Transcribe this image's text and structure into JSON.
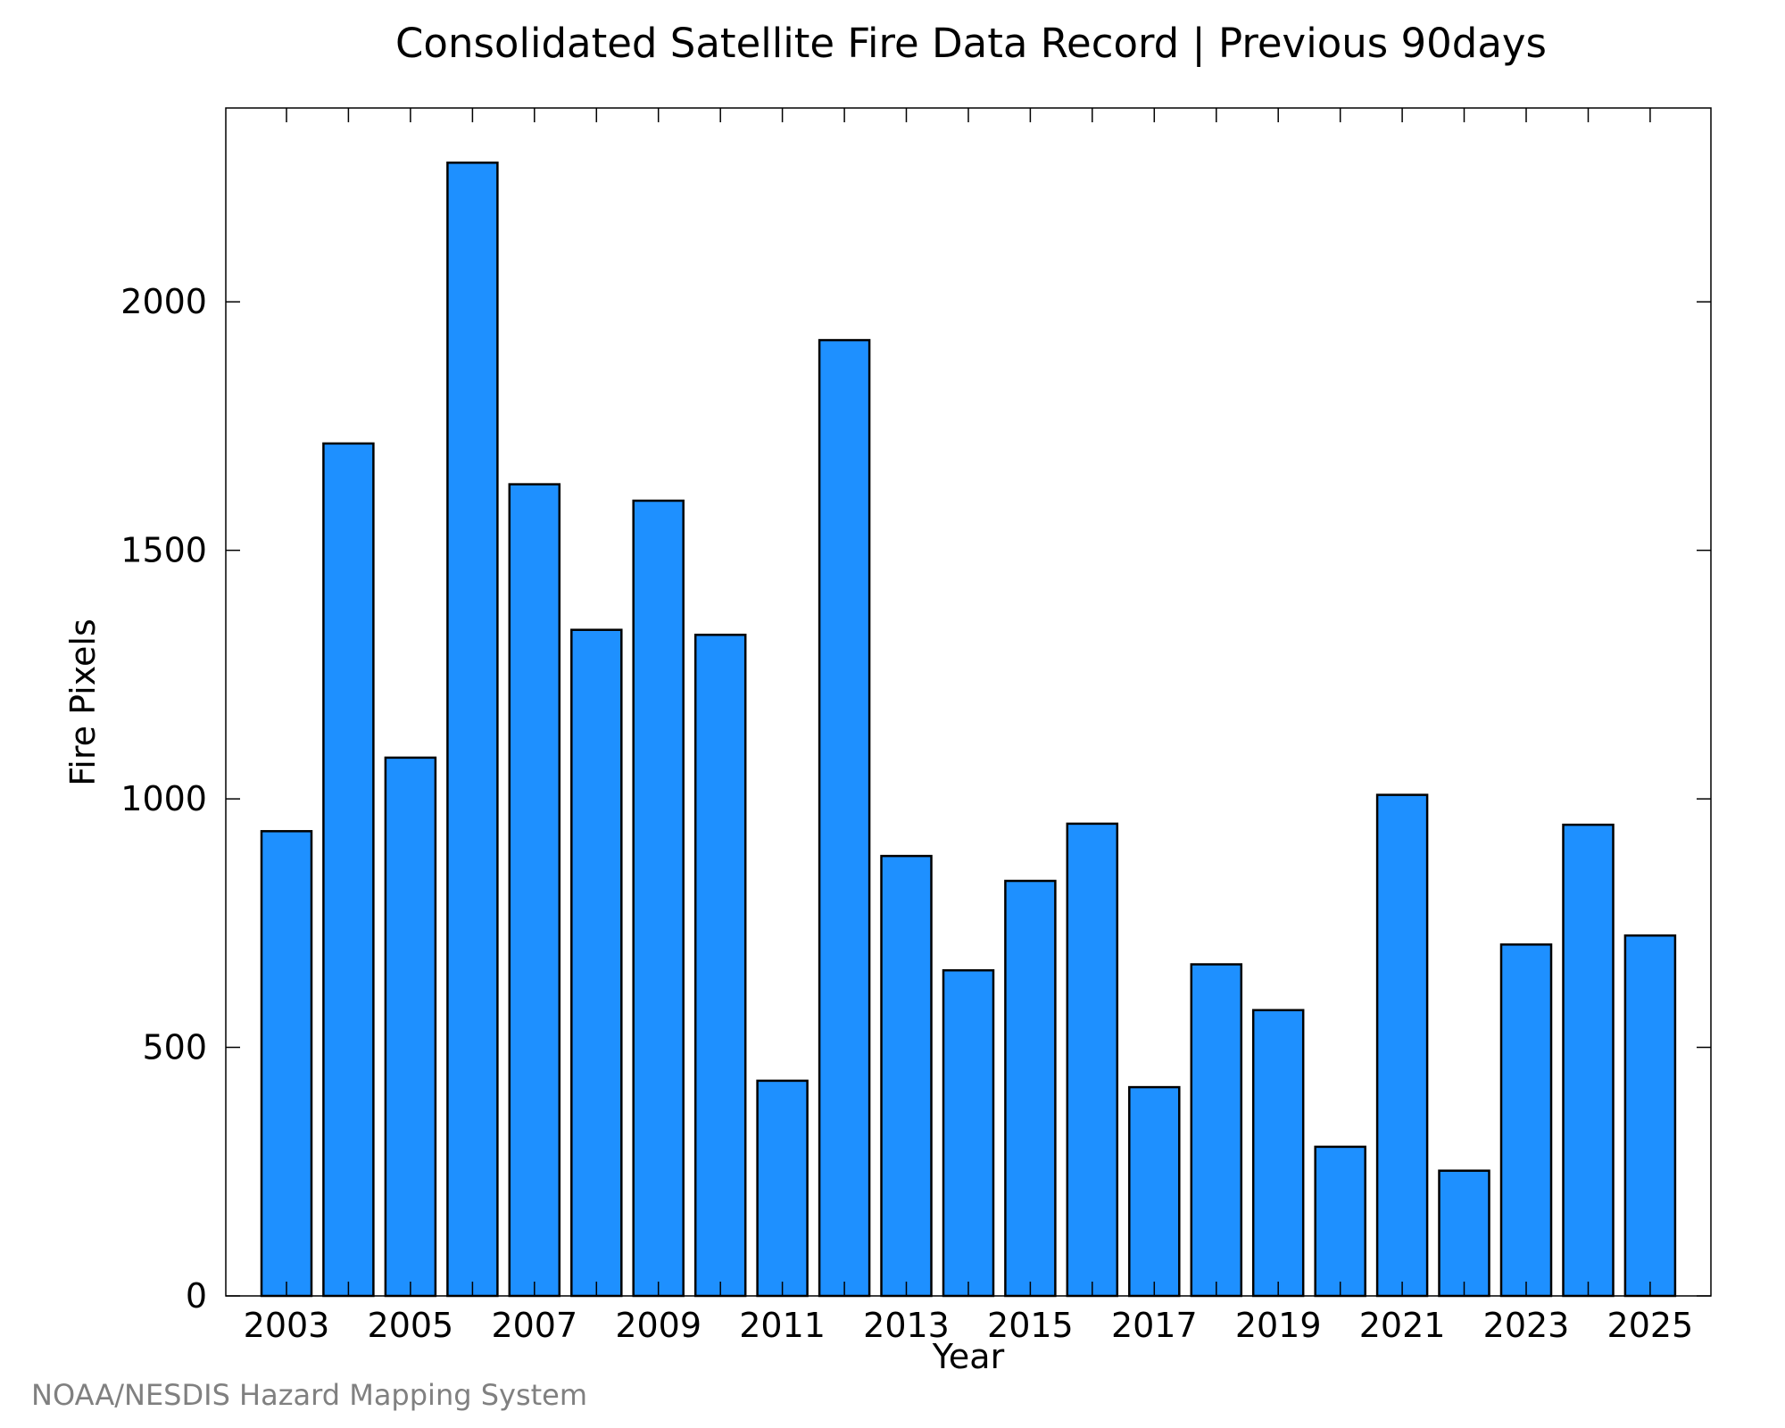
{
  "chart_data": {
    "type": "bar",
    "title": "Consolidated Satellite Fire Data Record | Previous 90days",
    "xlabel": "Year",
    "ylabel": "Fire Pixels",
    "categories": [
      "2003",
      "2004",
      "2005",
      "2006",
      "2007",
      "2008",
      "2009",
      "2010",
      "2011",
      "2012",
      "2013",
      "2014",
      "2015",
      "2016",
      "2017",
      "2018",
      "2019",
      "2020",
      "2021",
      "2022",
      "2023",
      "2024",
      "2025"
    ],
    "values": [
      935,
      1715,
      1083,
      2280,
      1633,
      1340,
      1600,
      1330,
      433,
      1923,
      885,
      655,
      835,
      950,
      420,
      667,
      575,
      300,
      1008,
      252,
      707,
      948,
      725
    ],
    "x_tick_labels": [
      "2003",
      "2005",
      "2007",
      "2009",
      "2011",
      "2013",
      "2015",
      "2017",
      "2019",
      "2021",
      "2023",
      "2025"
    ],
    "y_ticks": [
      0,
      500,
      1000,
      1500,
      2000
    ],
    "ylim": [
      0,
      2390
    ],
    "bar_color": "#1E90FF",
    "bar_edge_color": "#000000",
    "grid": false,
    "credit": "NOAA/NESDIS Hazard Mapping System"
  }
}
